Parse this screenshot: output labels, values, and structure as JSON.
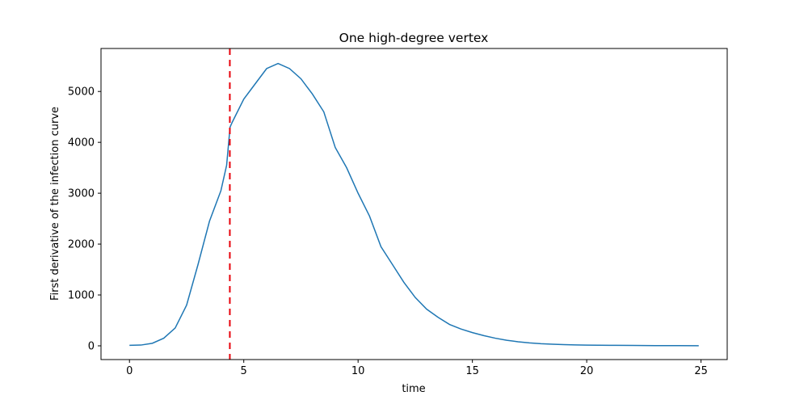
{
  "chart_data": {
    "type": "line",
    "title": "One high-degree vertex",
    "x_label": "time",
    "y_label": "First derivative of the infection curve",
    "x": [
      0,
      0.5,
      1,
      1.5,
      2,
      2.5,
      3,
      3.5,
      4,
      4.25,
      4.4,
      4.5,
      5,
      5.5,
      6,
      6.5,
      7,
      7.5,
      8,
      8.5,
      9,
      9.5,
      10,
      10.5,
      11,
      11.5,
      12,
      12.5,
      13,
      13.5,
      14,
      14.5,
      15,
      15.5,
      16,
      16.5,
      17,
      17.5,
      18,
      18.5,
      19,
      19.5,
      20,
      21,
      22,
      23,
      24,
      24.9
    ],
    "series": [
      {
        "color": "#1f77b4",
        "values": [
          10,
          15,
          50,
          150,
          350,
          800,
          1600,
          2450,
          3050,
          3550,
          4300,
          4400,
          4850,
          5150,
          5450,
          5550,
          5450,
          5250,
          4950,
          4600,
          3900,
          3500,
          3000,
          2550,
          1950,
          1600,
          1250,
          950,
          720,
          560,
          420,
          330,
          260,
          200,
          150,
          110,
          80,
          58,
          42,
          32,
          24,
          18,
          14,
          10,
          7,
          5,
          3,
          2
        ]
      }
    ],
    "vline": {
      "x": 4.39,
      "color": "#e8000b"
    },
    "xlim": [
      -1.245,
      26.145
    ],
    "xticks": [
      0,
      5,
      10,
      15,
      20,
      25
    ],
    "ylim": [
      -270,
      5845
    ],
    "yticks": [
      0,
      1000,
      2000,
      3000,
      4000,
      5000
    ]
  }
}
